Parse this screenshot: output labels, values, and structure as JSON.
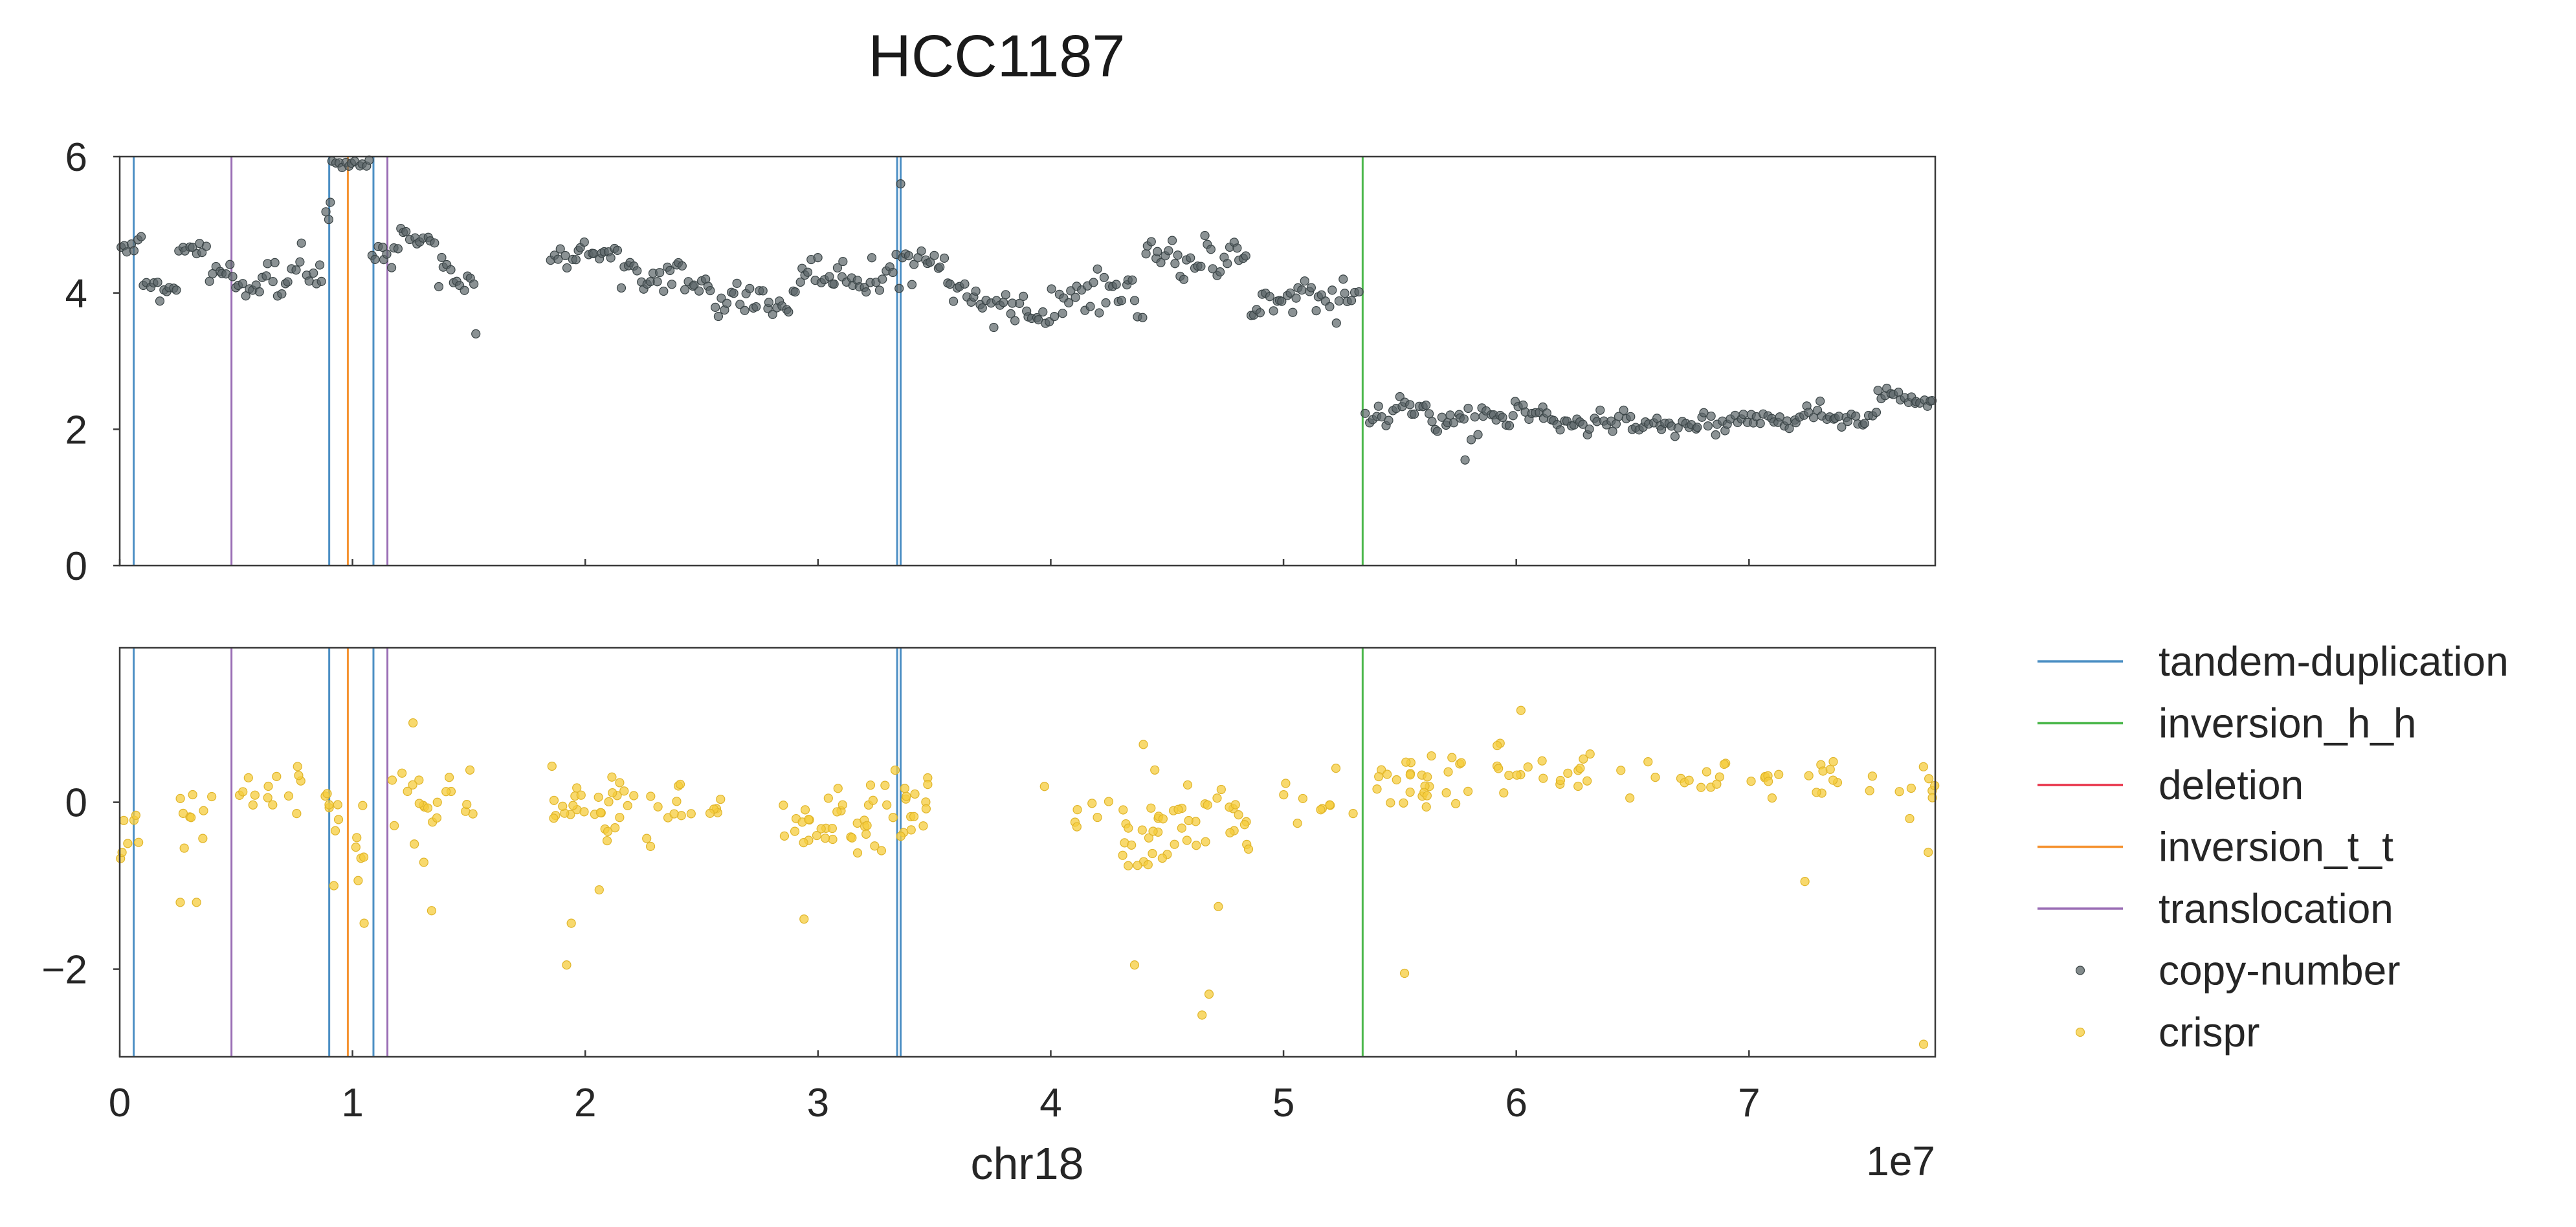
{
  "chart_data": {
    "type": "scatter",
    "title": "HCC1187",
    "xlabel": "chr18",
    "x_offset_label": "1e7",
    "xlim": [
      0,
      78000000
    ],
    "x_ticks": [
      0,
      10000000,
      20000000,
      30000000,
      40000000,
      50000000,
      60000000,
      70000000
    ],
    "x_tick_labels": [
      "0",
      "1",
      "2",
      "3",
      "4",
      "5",
      "6",
      "7"
    ],
    "grid": false,
    "legend_position": "right",
    "panels": [
      {
        "name": "copy-number",
        "ylim": [
          0,
          6
        ],
        "y_ticks": [
          0,
          2,
          4,
          6
        ],
        "y_tick_labels": [
          "0",
          "2",
          "4",
          "6"
        ]
      },
      {
        "name": "crispr",
        "ylim": [
          -3.05,
          1.85
        ],
        "y_ticks": [
          -2,
          0
        ],
        "y_tick_labels": [
          "−2",
          "0"
        ]
      }
    ],
    "structural_variants": [
      {
        "type": "tandem-duplication",
        "x": 600000
      },
      {
        "type": "translocation",
        "x": 4800000
      },
      {
        "type": "tandem-duplication",
        "x": 9000000
      },
      {
        "type": "inversion_t_t",
        "x": 9800000
      },
      {
        "type": "tandem-duplication",
        "x": 10900000
      },
      {
        "type": "translocation",
        "x": 11500000
      },
      {
        "type": "tandem-duplication",
        "x": 33400000
      },
      {
        "type": "tandem-duplication",
        "x": 33550000
      },
      {
        "type": "inversion_h_h",
        "x": 53400000
      }
    ],
    "legend": [
      {
        "label": "tandem-duplication",
        "kind": "line",
        "color": "#4c8fc4"
      },
      {
        "label": "inversion_h_h",
        "kind": "line",
        "color": "#4db84d"
      },
      {
        "label": "deletion",
        "kind": "line",
        "color": "#e8334a"
      },
      {
        "label": "inversion_t_t",
        "kind": "line",
        "color": "#f59331"
      },
      {
        "label": "translocation",
        "kind": "line",
        "color": "#9b6fb5"
      },
      {
        "label": "copy-number",
        "kind": "marker",
        "color": "#5a6466"
      },
      {
        "label": "crispr",
        "kind": "marker",
        "color": "#f5cc3c"
      }
    ],
    "series": [
      {
        "name": "copy-number",
        "color": "#5a6466",
        "segments": [
          {
            "x_start": 0,
            "x_end": 1000000,
            "mean": 4.75,
            "jitter": 0.17
          },
          {
            "x_start": 1000000,
            "x_end": 2500000,
            "mean": 4.05,
            "jitter": 0.15
          },
          {
            "x_start": 2500000,
            "x_end": 3800000,
            "mean": 4.65,
            "jitter": 0.17
          },
          {
            "x_start": 3800000,
            "x_end": 7200000,
            "mean": 4.1,
            "jitter": 0.22
          },
          {
            "x_start": 7200000,
            "x_end": 8800000,
            "mean": 4.15,
            "jitter": 0.32
          },
          {
            "x_start": 8800000,
            "x_end": 9100000,
            "mean": 5.2,
            "jitter": 0.25
          },
          {
            "x_start": 9100000,
            "x_end": 10800000,
            "mean": 5.9,
            "jitter": 0.1
          },
          {
            "x_start": 10800000,
            "x_end": 12000000,
            "mean": 4.45,
            "jitter": 0.18
          },
          {
            "x_start": 12000000,
            "x_end": 13600000,
            "mean": 4.85,
            "jitter": 0.15
          },
          {
            "x_start": 13600000,
            "x_end": 15300000,
            "mean": 4.2,
            "jitter": 0.2
          },
          {
            "x_start": 18500000,
            "x_end": 21500000,
            "mean": 4.6,
            "jitter": 0.15
          },
          {
            "x_start": 21500000,
            "x_end": 25500000,
            "mean": 4.15,
            "jitter": 0.22
          },
          {
            "x_start": 25500000,
            "x_end": 29000000,
            "mean": 3.85,
            "jitter": 0.22
          },
          {
            "x_start": 29000000,
            "x_end": 33000000,
            "mean": 4.25,
            "jitter": 0.25
          },
          {
            "x_start": 33000000,
            "x_end": 35500000,
            "mean": 4.45,
            "jitter": 0.25
          },
          {
            "x_start": 35500000,
            "x_end": 40000000,
            "mean": 3.85,
            "jitter": 0.25
          },
          {
            "x_start": 40000000,
            "x_end": 44000000,
            "mean": 4.0,
            "jitter": 0.25
          },
          {
            "x_start": 44000000,
            "x_end": 48500000,
            "mean": 4.55,
            "jitter": 0.2
          },
          {
            "x_start": 48500000,
            "x_end": 53300000,
            "mean": 3.8,
            "jitter": 0.25
          },
          {
            "x_start": 53500000,
            "x_end": 58000000,
            "mean": 2.2,
            "jitter": 0.17
          },
          {
            "x_start": 58000000,
            "x_end": 62000000,
            "mean": 2.2,
            "jitter": 0.15
          },
          {
            "x_start": 62000000,
            "x_end": 72000000,
            "mean": 2.1,
            "jitter": 0.13
          },
          {
            "x_start": 72000000,
            "x_end": 75500000,
            "mean": 2.2,
            "jitter": 0.1
          },
          {
            "x_start": 75500000,
            "x_end": 78000000,
            "mean": 2.45,
            "jitter": 0.1
          }
        ],
        "points": [
          {
            "x": 33550000,
            "y": 5.6
          },
          {
            "x": 15300000,
            "y": 3.4
          },
          {
            "x": 57800000,
            "y": 1.55
          }
        ]
      },
      {
        "name": "crispr",
        "color": "#f5cc3c",
        "clusters": [
          {
            "x_start": 0,
            "x_end": 1200000,
            "mean": -0.3,
            "jitter": 0.45,
            "n": 7
          },
          {
            "x_start": 2500000,
            "x_end": 4000000,
            "mean": -0.2,
            "jitter": 0.5,
            "n": 9
          },
          {
            "x_start": 4800000,
            "x_end": 9000000,
            "mean": 0.15,
            "jitter": 0.25,
            "n": 18
          },
          {
            "x_start": 8800000,
            "x_end": 10500000,
            "mean": -0.5,
            "jitter": 0.5,
            "n": 9
          },
          {
            "x_start": 11500000,
            "x_end": 15500000,
            "mean": -0.2,
            "jitter": 0.45,
            "n": 22
          },
          {
            "x_start": 18500000,
            "x_end": 23500000,
            "mean": -0.05,
            "jitter": 0.3,
            "n": 34
          },
          {
            "x_start": 23500000,
            "x_end": 26000000,
            "mean": 0.0,
            "jitter": 0.2,
            "n": 12
          },
          {
            "x_start": 28500000,
            "x_end": 32000000,
            "mean": -0.2,
            "jitter": 0.3,
            "n": 26
          },
          {
            "x_start": 32000000,
            "x_end": 35000000,
            "mean": -0.05,
            "jitter": 0.35,
            "n": 26
          },
          {
            "x_start": 39500000,
            "x_end": 43000000,
            "mean": -0.05,
            "jitter": 0.2,
            "n": 7
          },
          {
            "x_start": 43000000,
            "x_end": 48500000,
            "mean": -0.3,
            "jitter": 0.38,
            "n": 48
          },
          {
            "x_start": 50000000,
            "x_end": 53000000,
            "mean": -0.05,
            "jitter": 0.3,
            "n": 10
          },
          {
            "x_start": 54000000,
            "x_end": 58000000,
            "mean": 0.25,
            "jitter": 0.25,
            "n": 28
          },
          {
            "x_start": 59000000,
            "x_end": 63000000,
            "mean": 0.35,
            "jitter": 0.3,
            "n": 18
          },
          {
            "x_start": 63000000,
            "x_end": 69000000,
            "mean": 0.3,
            "jitter": 0.25,
            "n": 16
          },
          {
            "x_start": 70000000,
            "x_end": 74000000,
            "mean": 0.3,
            "jitter": 0.2,
            "n": 16
          },
          {
            "x_start": 75000000,
            "x_end": 78000000,
            "mean": 0.15,
            "jitter": 0.25,
            "n": 10
          }
        ],
        "points": [
          {
            "x": 19200000,
            "y": -1.95
          },
          {
            "x": 19400000,
            "y": -1.45
          },
          {
            "x": 20600000,
            "y": -1.05
          },
          {
            "x": 29400000,
            "y": -1.4
          },
          {
            "x": 43600000,
            "y": -1.95
          },
          {
            "x": 46500000,
            "y": -2.55
          },
          {
            "x": 46800000,
            "y": -2.3
          },
          {
            "x": 47200000,
            "y": -1.25
          },
          {
            "x": 55200000,
            "y": -2.05
          },
          {
            "x": 72400000,
            "y": -0.95
          },
          {
            "x": 77500000,
            "y": -2.9
          },
          {
            "x": 77700000,
            "y": -0.6
          },
          {
            "x": 12600000,
            "y": 0.95
          },
          {
            "x": 60200000,
            "y": 1.1
          },
          {
            "x": 13400000,
            "y": -1.3
          },
          {
            "x": 2600000,
            "y": -1.2
          },
          {
            "x": 3300000,
            "y": -1.2
          },
          {
            "x": 10500000,
            "y": -1.45
          },
          {
            "x": 9200000,
            "y": -1.0
          }
        ]
      }
    ]
  }
}
